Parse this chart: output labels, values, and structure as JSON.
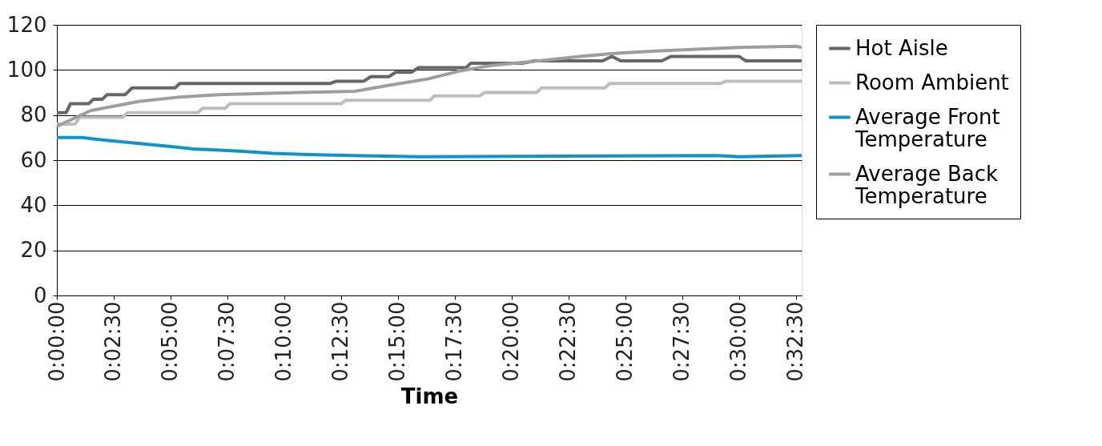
{
  "chart_data": {
    "type": "line",
    "xlabel": "Time",
    "xlim": [
      0,
      32.75
    ],
    "ylim": [
      0,
      120
    ],
    "yticks": [
      0,
      20,
      40,
      60,
      80,
      100,
      120
    ],
    "xticks": [
      {
        "value": 0,
        "label": "0:00:00"
      },
      {
        "value": 2.5,
        "label": "0:02:30"
      },
      {
        "value": 5,
        "label": "0:05:00"
      },
      {
        "value": 7.5,
        "label": "0:07:30"
      },
      {
        "value": 10,
        "label": "0:10:00"
      },
      {
        "value": 12.5,
        "label": "0:12:30"
      },
      {
        "value": 15,
        "label": "0:15:00"
      },
      {
        "value": 17.5,
        "label": "0:17:30"
      },
      {
        "value": 20,
        "label": "0:20:00"
      },
      {
        "value": 22.5,
        "label": "0:22:30"
      },
      {
        "value": 25,
        "label": "0:25:00"
      },
      {
        "value": 27.5,
        "label": "0:27:30"
      },
      {
        "value": 30,
        "label": "0:30:00"
      },
      {
        "value": 32.5,
        "label": "0:32:30"
      }
    ],
    "grid": "y",
    "legend": "right",
    "marker": "none",
    "line_style": "solid",
    "series": [
      {
        "name": "Hot Aisle",
        "color": "#666666",
        "x": [
          0,
          0.4,
          0.6,
          1.4,
          1.6,
          2.0,
          2.2,
          3.0,
          3.3,
          5.2,
          5.4,
          12.0,
          12.3,
          13.5,
          13.8,
          14.6,
          14.9,
          15.6,
          15.9,
          18.0,
          18.2,
          20.5,
          21.0,
          24.0,
          24.4,
          24.8,
          26.6,
          27.0,
          30.0,
          30.3,
          32.75
        ],
        "values": [
          81,
          81,
          85,
          85,
          87,
          87,
          89,
          89,
          92,
          92,
          94,
          94,
          95,
          95,
          97,
          97,
          99,
          99,
          101,
          101,
          103,
          103,
          104,
          104,
          106,
          104,
          104,
          106,
          106,
          104,
          104
        ]
      },
      {
        "name": "Room Ambient",
        "color": "#bdbdbd",
        "x": [
          0,
          0.8,
          1.0,
          2.9,
          3.1,
          6.2,
          6.4,
          7.4,
          7.6,
          12.5,
          12.7,
          16.4,
          16.6,
          18.6,
          18.8,
          21.1,
          21.3,
          24.1,
          24.3,
          29.2,
          29.4,
          32.75
        ],
        "values": [
          76,
          76,
          79,
          79,
          81,
          81,
          83,
          83,
          85,
          85,
          86.5,
          86.5,
          88.5,
          88.5,
          90,
          90,
          92,
          92,
          94,
          94,
          95,
          95
        ]
      },
      {
        "name": "Average Front Temperature",
        "color": "#0e93cc",
        "x": [
          0,
          1.1,
          2,
          3,
          4,
          5,
          6,
          8,
          9.5,
          11,
          13,
          16,
          29,
          30,
          32.75
        ],
        "values": [
          70,
          70,
          69,
          68,
          67,
          66,
          65,
          64,
          63,
          62.5,
          62,
          61.5,
          62,
          61.5,
          62
        ]
      },
      {
        "name": "Average Back Temperature",
        "color": "#9e9e9e",
        "x": [
          0,
          1.5,
          3.6,
          5.4,
          7.1,
          10.7,
          13.1,
          14.5,
          16.3,
          17.7,
          19.1,
          21.2,
          23.0,
          24.75,
          26.5,
          30.0,
          32.5,
          32.75
        ],
        "values": [
          75,
          82,
          86,
          88,
          89,
          90,
          90.5,
          93,
          96,
          99.5,
          102,
          104,
          106,
          107.5,
          108.5,
          110,
          110.5,
          110
        ]
      }
    ]
  }
}
